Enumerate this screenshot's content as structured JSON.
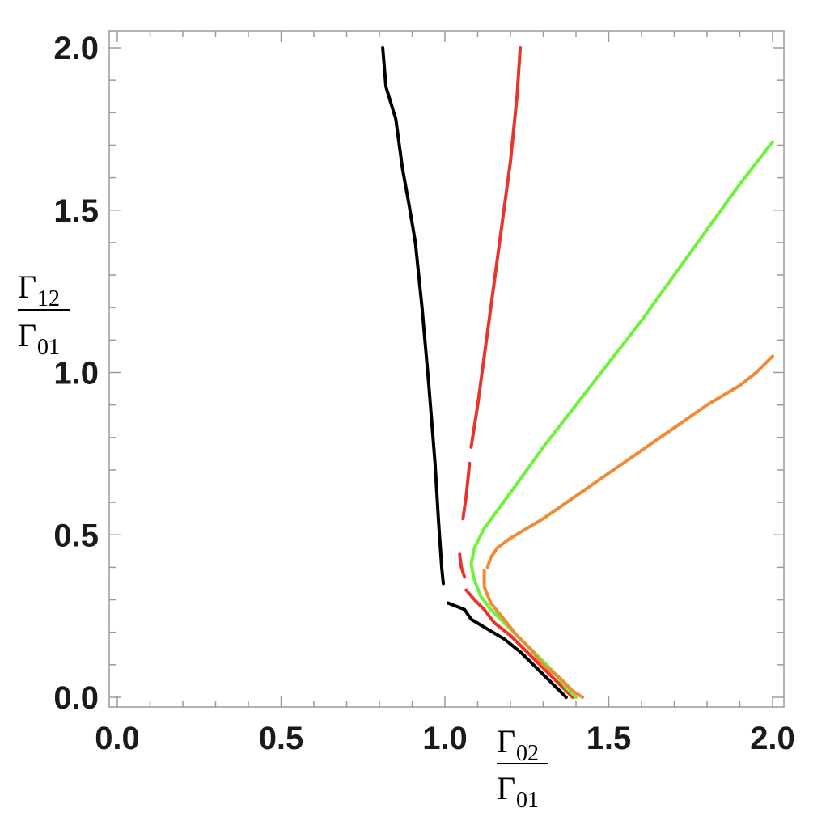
{
  "chart_data": {
    "type": "line",
    "xlabel": {
      "num": "Γ",
      "num_sub": "02",
      "den": "Γ",
      "den_sub": "01"
    },
    "ylabel": {
      "num": "Γ",
      "num_sub": "12",
      "den": "Γ",
      "den_sub": "01"
    },
    "xlim": [
      0,
      2
    ],
    "ylim": [
      0,
      2
    ],
    "xticks": [
      "0.0",
      "0.5",
      "1.0",
      "1.5",
      "2.0"
    ],
    "yticks": [
      "0.0",
      "0.5",
      "1.0",
      "1.5",
      "2.0"
    ],
    "x_tick_values": [
      0,
      0.5,
      1.0,
      1.5,
      2.0
    ],
    "y_tick_values": [
      0,
      0.5,
      1.0,
      1.5,
      2.0
    ],
    "minor_step": 0.1,
    "grid": false,
    "series": [
      {
        "color": "#000000",
        "segments": [
          [
            [
              0.81,
              2.0
            ],
            [
              0.82,
              1.88
            ],
            [
              0.85,
              1.78
            ],
            [
              0.87,
              1.63
            ],
            [
              0.89,
              1.52
            ],
            [
              0.91,
              1.4
            ],
            [
              0.93,
              1.2
            ],
            [
              0.95,
              0.97
            ],
            [
              0.97,
              0.72
            ],
            [
              0.98,
              0.55
            ],
            [
              0.99,
              0.4
            ],
            [
              0.995,
              0.35
            ]
          ],
          [
            [
              1.01,
              0.29
            ],
            [
              1.06,
              0.27
            ],
            [
              1.08,
              0.24
            ],
            [
              1.13,
              0.21
            ],
            [
              1.18,
              0.18
            ],
            [
              1.23,
              0.14
            ],
            [
              1.27,
              0.1
            ],
            [
              1.31,
              0.06
            ],
            [
              1.35,
              0.02
            ],
            [
              1.37,
              0.0
            ]
          ]
        ]
      },
      {
        "color": "#e8352a",
        "segments": [
          [
            [
              1.23,
              2.0
            ],
            [
              1.22,
              1.85
            ],
            [
              1.2,
              1.65
            ],
            [
              1.18,
              1.5
            ],
            [
              1.16,
              1.35
            ],
            [
              1.14,
              1.2
            ],
            [
              1.12,
              1.05
            ],
            [
              1.1,
              0.9
            ],
            [
              1.08,
              0.77
            ]
          ],
          [
            [
              1.075,
              0.72
            ],
            [
              1.065,
              0.62
            ],
            [
              1.055,
              0.55
            ]
          ],
          [
            [
              1.045,
              0.44
            ],
            [
              1.05,
              0.4
            ],
            [
              1.06,
              0.37
            ]
          ],
          [
            [
              1.065,
              0.33
            ],
            [
              1.09,
              0.3
            ],
            [
              1.12,
              0.27
            ],
            [
              1.15,
              0.23
            ],
            [
              1.2,
              0.19
            ],
            [
              1.24,
              0.15
            ],
            [
              1.28,
              0.11
            ],
            [
              1.32,
              0.07
            ],
            [
              1.35,
              0.04
            ],
            [
              1.39,
              0.0
            ]
          ]
        ]
      },
      {
        "color": "#6ef23a",
        "segments": [
          [
            [
              2.0,
              1.71
            ],
            [
              1.9,
              1.58
            ],
            [
              1.8,
              1.44
            ],
            [
              1.7,
              1.3
            ],
            [
              1.6,
              1.16
            ],
            [
              1.5,
              1.03
            ],
            [
              1.4,
              0.9
            ],
            [
              1.3,
              0.77
            ],
            [
              1.2,
              0.63
            ],
            [
              1.12,
              0.52
            ],
            [
              1.09,
              0.46
            ],
            [
              1.08,
              0.41
            ],
            [
              1.09,
              0.36
            ],
            [
              1.11,
              0.31
            ],
            [
              1.14,
              0.27
            ],
            [
              1.19,
              0.22
            ],
            [
              1.24,
              0.17
            ],
            [
              1.29,
              0.12
            ],
            [
              1.33,
              0.08
            ],
            [
              1.37,
              0.03
            ],
            [
              1.4,
              0.0
            ]
          ]
        ]
      },
      {
        "color": "#f08a35",
        "segments": [
          [
            [
              2.0,
              1.05
            ],
            [
              1.95,
              1.0
            ],
            [
              1.9,
              0.96
            ],
            [
              1.8,
              0.9
            ],
            [
              1.7,
              0.83
            ],
            [
              1.6,
              0.76
            ],
            [
              1.5,
              0.69
            ],
            [
              1.4,
              0.62
            ],
            [
              1.3,
              0.55
            ],
            [
              1.2,
              0.49
            ],
            [
              1.16,
              0.46
            ],
            [
              1.14,
              0.43
            ],
            [
              1.13,
              0.4
            ]
          ],
          [
            [
              1.12,
              0.39
            ],
            [
              1.12,
              0.34
            ],
            [
              1.14,
              0.29
            ],
            [
              1.18,
              0.24
            ],
            [
              1.22,
              0.19
            ],
            [
              1.26,
              0.15
            ],
            [
              1.3,
              0.1
            ],
            [
              1.35,
              0.06
            ],
            [
              1.39,
              0.02
            ],
            [
              1.42,
              0.0
            ]
          ]
        ]
      }
    ]
  }
}
